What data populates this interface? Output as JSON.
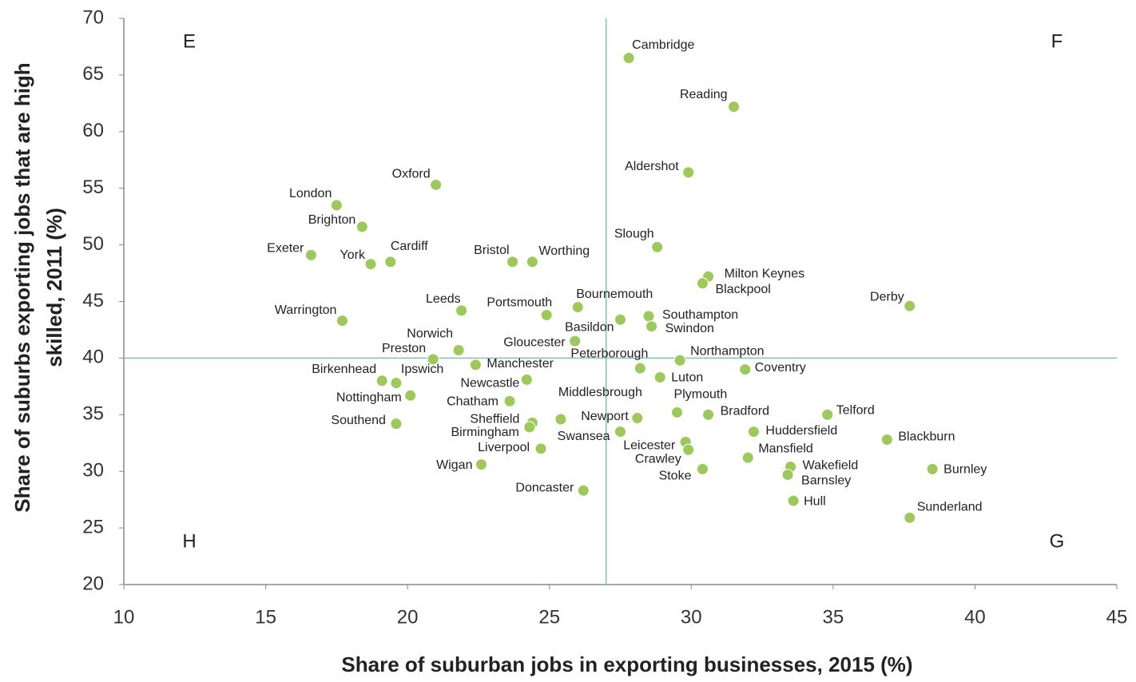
{
  "chart_data": {
    "type": "scatter",
    "xlabel": "Share of suburban jobs in exporting businesses, 2015 (%)",
    "ylabel": [
      "Share of suburbs exporting jobs that are high",
      "skilled, 2011 (%)"
    ],
    "color": "#9dc85a",
    "ref_color": "#7fc4b0",
    "xlim": [
      10,
      45
    ],
    "xticks": [
      10,
      15,
      20,
      25,
      30,
      35,
      40,
      45
    ],
    "ylim": [
      20,
      70
    ],
    "yticks": [
      20,
      25,
      30,
      35,
      40,
      45,
      50,
      55,
      60,
      65,
      70
    ],
    "vline": 27,
    "hline": 40,
    "annotations": [
      "E",
      "F",
      "G",
      "H"
    ],
    "labels": [
      "Cambridge",
      "Reading",
      "Aldershot",
      "Oxford",
      "London",
      "Brighton",
      "Exeter",
      "York",
      "Cardiff",
      "Bristol",
      "Worthing",
      "Slough",
      "Milton Keynes",
      "Blackpool",
      "Derby",
      "Leeds",
      "Warrington",
      "Portsmouth",
      "Bournemouth",
      "Basildon",
      "Southampton",
      "Swindon",
      "Gloucester",
      "Norwich",
      "Preston",
      "Manchester",
      "Northampton",
      "Peterborough",
      "Coventry",
      "Luton",
      "Newcastle",
      "Birkenhead",
      "Ipswich",
      "Nottingham",
      "Chatham",
      "Southend",
      "Plymouth",
      "Bradford",
      "Telford",
      "Sheffield",
      "Birmingham",
      "Middlesbrough",
      "Newport",
      "Huddersfield",
      "Swansea",
      "Blackburn",
      "Leicester",
      "Crawley",
      "Liverpool",
      "Mansfield",
      "Wakefield",
      "Barnsley",
      "Wigan",
      "Burnley",
      "Stoke",
      "Doncaster",
      "Hull",
      "Sunderland"
    ],
    "x": [
      27.8,
      31.5,
      29.9,
      21.0,
      17.5,
      18.4,
      16.6,
      18.7,
      19.4,
      23.7,
      24.4,
      28.8,
      30.6,
      30.4,
      37.7,
      21.9,
      17.7,
      24.9,
      26.0,
      27.5,
      28.5,
      28.6,
      25.9,
      21.8,
      20.9,
      22.4,
      29.6,
      28.2,
      31.9,
      28.9,
      24.2,
      19.1,
      19.6,
      20.1,
      23.6,
      19.6,
      29.5,
      30.6,
      34.8,
      24.4,
      24.3,
      25.4,
      28.1,
      32.2,
      27.5,
      36.9,
      29.8,
      29.9,
      24.7,
      32.0,
      33.5,
      33.4,
      22.6,
      38.5,
      30.4,
      26.2,
      33.6,
      37.7
    ],
    "values": [
      66.5,
      62.2,
      56.4,
      55.3,
      53.5,
      51.6,
      49.1,
      48.3,
      48.5,
      48.5,
      48.5,
      49.8,
      47.2,
      46.6,
      44.6,
      44.2,
      43.3,
      43.8,
      44.5,
      43.4,
      43.7,
      42.8,
      41.5,
      40.7,
      39.9,
      39.4,
      39.8,
      39.1,
      39.0,
      38.3,
      38.1,
      38.0,
      37.8,
      36.7,
      36.2,
      34.2,
      35.2,
      35.0,
      35.0,
      34.3,
      33.9,
      34.6,
      34.7,
      33.5,
      33.5,
      32.8,
      32.6,
      31.9,
      32.0,
      31.2,
      30.4,
      29.7,
      30.6,
      30.2,
      30.2,
      28.3,
      27.4,
      25.9
    ]
  }
}
